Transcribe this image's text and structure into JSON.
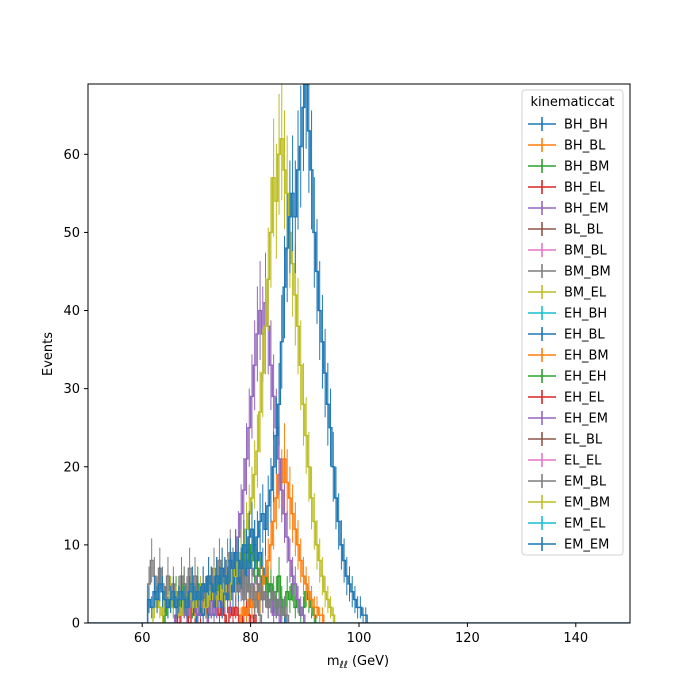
{
  "chart_data": {
    "type": "histogram",
    "xlabel": "m_{ℓℓ} (GeV)",
    "xlabel_main": "m",
    "xlabel_sub": "ℓℓ",
    "xlabel_unit": " (GeV)",
    "ylabel": "Events",
    "xlim": [
      50,
      150
    ],
    "ylim": [
      0,
      69
    ],
    "x_ticks": [
      60,
      80,
      100,
      120,
      140
    ],
    "y_ticks": [
      0,
      10,
      20,
      30,
      40,
      50,
      60
    ],
    "bin_width": 0.5,
    "grid": false,
    "legend": {
      "title": "kinematiccat",
      "placement": "top-right"
    },
    "series": [
      {
        "name": "BH_BH",
        "color": "#1f77b4"
      },
      {
        "name": "BH_BL",
        "color": "#ff7f0e"
      },
      {
        "name": "BH_BM",
        "color": "#2ca02c"
      },
      {
        "name": "BH_EL",
        "color": "#d62728"
      },
      {
        "name": "BH_EM",
        "color": "#9467bd"
      },
      {
        "name": "BL_BL",
        "color": "#8c564b"
      },
      {
        "name": "BM_BL",
        "color": "#e377c2"
      },
      {
        "name": "BM_BM",
        "color": "#7f7f7f"
      },
      {
        "name": "BM_EL",
        "color": "#bcbd22"
      },
      {
        "name": "EH_BH",
        "color": "#17becf"
      },
      {
        "name": "EH_BL",
        "color": "#1f77b4"
      },
      {
        "name": "EH_BM",
        "color": "#ff7f0e"
      },
      {
        "name": "EH_EH",
        "color": "#2ca02c"
      },
      {
        "name": "EH_EL",
        "color": "#d62728"
      },
      {
        "name": "EH_EM",
        "color": "#9467bd"
      },
      {
        "name": "EL_BL",
        "color": "#8c564b"
      },
      {
        "name": "EL_EL",
        "color": "#e377c2"
      },
      {
        "name": "EM_BL",
        "color": "#7f7f7f"
      },
      {
        "name": "EM_BM",
        "color": "#bcbd22"
      },
      {
        "name": "EM_EL",
        "color": "#17becf"
      },
      {
        "name": "EM_EM",
        "color": "#1f77b4"
      }
    ],
    "highlight_series": [
      {
        "name": "EM_EM",
        "color": "#1f77b4",
        "x_start": 61,
        "values": [
          3,
          2,
          4,
          3,
          5,
          4,
          3,
          2,
          3,
          4,
          2,
          3,
          4,
          3,
          2,
          4,
          5,
          3,
          4,
          3,
          5,
          4,
          6,
          5,
          4,
          6,
          5,
          7,
          6,
          5,
          8,
          7,
          9,
          8,
          7,
          10,
          9,
          11,
          12,
          10,
          11,
          13,
          14,
          12,
          15,
          17,
          20,
          24,
          28,
          36,
          43,
          48,
          52,
          55,
          52,
          58,
          61,
          66,
          69,
          63,
          58,
          50,
          45,
          40,
          36,
          32,
          28,
          25,
          20,
          16,
          13,
          10,
          8,
          6,
          5,
          4,
          3,
          2,
          2,
          1,
          1
        ]
      },
      {
        "name": "BM_EL",
        "color": "#bcbd22",
        "x_start": 62,
        "values": [
          2,
          3,
          2,
          1,
          3,
          2,
          4,
          2,
          3,
          2,
          1,
          3,
          2,
          4,
          3,
          2,
          3,
          4,
          3,
          2,
          4,
          3,
          5,
          4,
          3,
          5,
          4,
          6,
          5,
          7,
          6,
          8,
          9,
          10,
          12,
          14,
          16,
          19,
          22,
          27,
          32,
          38,
          44,
          50,
          57,
          54,
          60,
          62,
          58,
          55,
          50,
          46,
          42,
          38,
          33,
          28,
          24,
          20,
          16,
          13,
          10,
          8,
          6,
          4,
          3,
          2,
          1
        ]
      },
      {
        "name": "BH_EM",
        "color": "#9467bd",
        "x_start": 66,
        "values": [
          1,
          2,
          1,
          2,
          1,
          2,
          3,
          2,
          1,
          2,
          3,
          2,
          3,
          2,
          3,
          4,
          3,
          4,
          5,
          4,
          6,
          7,
          9,
          11,
          14,
          17,
          21,
          25,
          29,
          33,
          37,
          40,
          37,
          41,
          38,
          33,
          29,
          25,
          21,
          17,
          14,
          11,
          8,
          6,
          5,
          3,
          2,
          1
        ]
      },
      {
        "name": "BM_BM",
        "color": "#7f7f7f",
        "x_start": 61,
        "values": [
          5,
          8,
          6,
          4,
          7,
          5,
          3,
          6,
          4,
          5,
          3,
          4,
          6,
          5,
          4,
          7,
          5,
          6,
          4,
          3,
          5,
          4,
          6,
          5,
          7,
          6,
          8,
          7,
          6,
          8,
          9,
          7,
          8,
          6,
          7,
          5,
          6,
          4,
          5,
          3,
          4,
          5,
          3,
          4,
          2,
          3,
          4,
          2,
          3,
          1,
          2,
          1
        ]
      },
      {
        "name": "BH_BL",
        "color": "#ff7f0e",
        "x_start": 78,
        "values": [
          1,
          2,
          1,
          3,
          2,
          3,
          4,
          3,
          5,
          6,
          8,
          10,
          13,
          16,
          19,
          18,
          21,
          18,
          16,
          14,
          12,
          10,
          8,
          6,
          5,
          4,
          3,
          2,
          2,
          1,
          1
        ]
      },
      {
        "name": "BH_BM",
        "color": "#2ca02c",
        "x_start": 64,
        "values": [
          1,
          2,
          3,
          2,
          4,
          3,
          2,
          5,
          3,
          4,
          2,
          3,
          5,
          4,
          3,
          2,
          4,
          3,
          5,
          4,
          6,
          5,
          4,
          6,
          5,
          7,
          6,
          8,
          7,
          9,
          8,
          10,
          9,
          8,
          7,
          6,
          5,
          6,
          4,
          5,
          3,
          4,
          6,
          3,
          2,
          4,
          3,
          5,
          2,
          3,
          1,
          2,
          4,
          3,
          2,
          1
        ]
      },
      {
        "name": "BH_BH",
        "color": "#1f77b4",
        "x_start": 70,
        "values": [
          1,
          2,
          1,
          3,
          2,
          3,
          2,
          4,
          3,
          2,
          4,
          3,
          5,
          4,
          6,
          5,
          7,
          6,
          8,
          7,
          9,
          10,
          8,
          9,
          7,
          6,
          5,
          4,
          3,
          2,
          3,
          2,
          1
        ]
      },
      {
        "name": "EH_EM",
        "color": "#9467bd",
        "x_start": 72,
        "values": [
          1,
          2,
          1,
          2,
          3,
          2,
          3,
          4,
          3,
          5,
          4,
          6,
          5,
          7,
          6,
          8,
          7,
          6,
          5,
          4,
          3,
          4,
          2,
          3,
          1,
          2,
          1
        ]
      },
      {
        "name": "EM_BL",
        "color": "#7f7f7f",
        "x_start": 70,
        "values": [
          1,
          3,
          2,
          4,
          3,
          5,
          4,
          6,
          5,
          4,
          6,
          5,
          7,
          6,
          5,
          4,
          6,
          3,
          5,
          4,
          3,
          2,
          3,
          1
        ]
      },
      {
        "name": "BH_EL",
        "color": "#d62728",
        "x_start": 66,
        "values": [
          1,
          0,
          1,
          2,
          1,
          0,
          2,
          1,
          2,
          1,
          3,
          2,
          1,
          2,
          3,
          2,
          1,
          2,
          1,
          0,
          2,
          1,
          2,
          1,
          0,
          1,
          2,
          1,
          0,
          1
        ]
      }
    ]
  }
}
